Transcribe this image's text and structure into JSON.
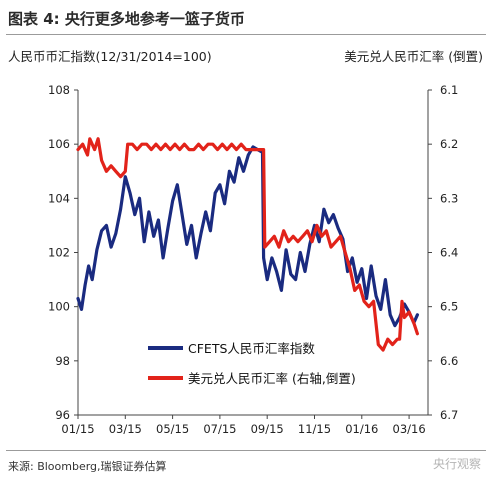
{
  "title": "图表 4: 央行更多地参考一篮子货币",
  "left_axis_label": "人民币币汇指数(12/31/2014=100)",
  "right_axis_label": "美元兑人民币汇率 (倒置)",
  "source": "来源: Bloomberg,瑞银证券估算",
  "watermark": "央行观察",
  "colors": {
    "cfets": "#1a2b80",
    "usdcny": "#e2231a"
  },
  "chart_data": {
    "type": "line",
    "xlabels": [
      "01/15",
      "03/15",
      "05/15",
      "07/15",
      "09/15",
      "11/15",
      "01/16",
      "03/16"
    ],
    "xlim": [
      0,
      14.8
    ],
    "left_ylim": [
      96,
      108
    ],
    "left_yticks": [
      "96",
      "98",
      "100",
      "102",
      "104",
      "106",
      "108"
    ],
    "right_ylim": [
      6.1,
      6.7
    ],
    "right_inverted": true,
    "right_yticks": [
      "6.1",
      "6.2",
      "6.3",
      "6.4",
      "6.5",
      "6.6",
      "6.7"
    ],
    "grid": false,
    "legend_position": "bottom-left",
    "series": [
      {
        "name": "CFETS人民币汇率指数",
        "axis": "left",
        "x": [
          0.0,
          0.15,
          0.3,
          0.45,
          0.6,
          0.8,
          1.0,
          1.2,
          1.4,
          1.6,
          1.8,
          2.0,
          2.2,
          2.4,
          2.6,
          2.8,
          3.0,
          3.2,
          3.4,
          3.6,
          3.8,
          4.0,
          4.2,
          4.4,
          4.6,
          4.8,
          5.0,
          5.2,
          5.4,
          5.6,
          5.8,
          6.0,
          6.2,
          6.4,
          6.6,
          6.8,
          7.0,
          7.2,
          7.4,
          7.6,
          7.8,
          7.85,
          8.0,
          8.2,
          8.4,
          8.6,
          8.8,
          9.0,
          9.2,
          9.4,
          9.6,
          9.8,
          10.0,
          10.2,
          10.4,
          10.6,
          10.8,
          11.0,
          11.2,
          11.4,
          11.6,
          11.8,
          12.0,
          12.2,
          12.4,
          12.6,
          12.8,
          13.0,
          13.2,
          13.4,
          13.6,
          13.8,
          14.0,
          14.2,
          14.35
        ],
        "values": [
          100.3,
          99.9,
          100.8,
          101.5,
          101.0,
          102.1,
          102.8,
          103.0,
          102.2,
          102.7,
          103.6,
          104.8,
          104.2,
          103.4,
          104.0,
          102.4,
          103.5,
          102.6,
          103.2,
          101.8,
          102.9,
          103.9,
          104.5,
          103.4,
          102.3,
          103.0,
          101.8,
          102.7,
          103.5,
          102.8,
          104.2,
          104.5,
          103.8,
          105.0,
          104.6,
          105.5,
          105.0,
          105.6,
          105.9,
          105.8,
          105.7,
          101.8,
          101.0,
          101.8,
          101.3,
          100.6,
          102.1,
          101.2,
          101.0,
          102.0,
          101.3,
          102.3,
          103.0,
          102.4,
          103.6,
          103.1,
          103.4,
          102.9,
          102.5,
          101.3,
          101.8,
          100.9,
          101.4,
          100.3,
          101.5,
          100.4,
          99.9,
          101.0,
          99.7,
          99.3,
          99.6,
          100.1,
          99.8,
          99.4,
          99.7
        ],
        "color": "#1a2b80"
      },
      {
        "name": "美元兑人民币汇率 (右轴,倒置)",
        "axis": "right",
        "x": [
          0.0,
          0.2,
          0.4,
          0.5,
          0.7,
          0.85,
          1.0,
          1.2,
          1.4,
          1.6,
          1.8,
          2.0,
          2.1,
          2.3,
          2.5,
          2.7,
          2.9,
          3.1,
          3.3,
          3.5,
          3.7,
          3.9,
          4.1,
          4.3,
          4.5,
          4.7,
          4.9,
          5.1,
          5.3,
          5.5,
          5.7,
          5.9,
          6.1,
          6.3,
          6.5,
          6.7,
          6.9,
          7.1,
          7.3,
          7.5,
          7.7,
          7.85,
          7.9,
          8.1,
          8.3,
          8.5,
          8.7,
          8.9,
          9.1,
          9.3,
          9.5,
          9.7,
          9.9,
          10.1,
          10.3,
          10.5,
          10.7,
          10.9,
          11.1,
          11.3,
          11.5,
          11.7,
          11.9,
          12.1,
          12.3,
          12.5,
          12.7,
          12.9,
          13.1,
          13.3,
          13.5,
          13.6,
          13.7,
          13.8,
          14.0,
          14.2,
          14.35
        ],
        "values": [
          6.21,
          6.2,
          6.22,
          6.19,
          6.21,
          6.19,
          6.23,
          6.25,
          6.24,
          6.25,
          6.26,
          6.25,
          6.2,
          6.2,
          6.21,
          6.2,
          6.2,
          6.21,
          6.2,
          6.21,
          6.2,
          6.21,
          6.2,
          6.21,
          6.2,
          6.21,
          6.21,
          6.2,
          6.21,
          6.2,
          6.2,
          6.21,
          6.2,
          6.21,
          6.2,
          6.21,
          6.2,
          6.21,
          6.21,
          6.21,
          6.21,
          6.21,
          6.39,
          6.38,
          6.37,
          6.39,
          6.36,
          6.38,
          6.37,
          6.38,
          6.37,
          6.36,
          6.38,
          6.35,
          6.37,
          6.36,
          6.39,
          6.38,
          6.37,
          6.4,
          6.43,
          6.47,
          6.46,
          6.49,
          6.5,
          6.49,
          6.57,
          6.58,
          6.56,
          6.57,
          6.56,
          6.56,
          6.49,
          6.52,
          6.51,
          6.53,
          6.55
        ],
        "color": "#e2231a"
      }
    ]
  }
}
